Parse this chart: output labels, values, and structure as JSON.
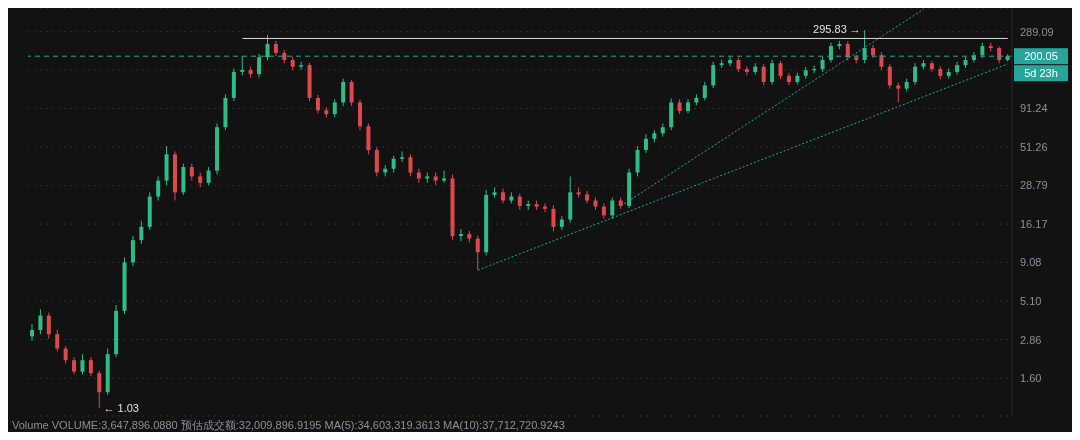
{
  "chart_data": {
    "type": "candlestick",
    "categories": [
      null,
      null,
      null,
      null,
      null,
      null,
      null,
      null,
      null,
      null,
      null,
      null,
      null,
      null,
      null,
      null,
      null,
      null,
      null,
      null,
      null,
      null,
      null,
      null,
      null,
      null,
      null,
      null,
      null,
      null,
      null,
      null,
      null,
      null,
      null,
      null,
      null,
      null,
      null,
      null,
      null,
      null,
      null,
      null,
      null,
      null,
      null,
      null,
      null,
      null,
      null,
      null,
      null,
      null,
      null,
      null,
      null,
      null,
      null,
      null,
      null,
      null,
      null,
      null,
      null,
      null,
      null,
      null,
      null,
      null,
      null,
      null,
      null,
      null,
      null,
      null,
      null,
      null,
      null,
      null,
      null,
      null,
      null,
      null,
      null,
      null,
      null,
      null,
      null,
      null,
      null,
      null,
      null,
      null,
      null,
      null,
      null,
      null,
      null,
      null,
      null,
      null,
      null,
      null,
      null,
      null,
      null,
      null,
      null,
      null,
      null,
      null,
      null,
      null,
      null,
      null,
      null
    ],
    "ohlc": [
      [
        3.0,
        3.6,
        2.8,
        3.3
      ],
      [
        3.3,
        4.5,
        3.1,
        4.1
      ],
      [
        4.1,
        4.3,
        2.9,
        3.1
      ],
      [
        3.1,
        3.3,
        2.4,
        2.5
      ],
      [
        2.5,
        2.6,
        2.0,
        2.1
      ],
      [
        2.1,
        2.2,
        1.7,
        1.77
      ],
      [
        1.77,
        2.3,
        1.7,
        2.1
      ],
      [
        2.1,
        2.2,
        1.65,
        1.73
      ],
      [
        1.73,
        1.8,
        1.03,
        1.3
      ],
      [
        1.3,
        2.5,
        1.25,
        2.3
      ],
      [
        2.3,
        4.8,
        2.2,
        4.4
      ],
      [
        4.4,
        9.8,
        4.2,
        9.1
      ],
      [
        9.1,
        13.5,
        8.6,
        12.7
      ],
      [
        12.7,
        17,
        12,
        15.5
      ],
      [
        15.5,
        26,
        14.8,
        24.4
      ],
      [
        24.4,
        33,
        23,
        31
      ],
      [
        31,
        52,
        29,
        46
      ],
      [
        46,
        48,
        23,
        26
      ],
      [
        26,
        40,
        25,
        38
      ],
      [
        38,
        40,
        31,
        33
      ],
      [
        33,
        35,
        28,
        30
      ],
      [
        30,
        38,
        29,
        36
      ],
      [
        36,
        73,
        34,
        69
      ],
      [
        69,
        113,
        66,
        107
      ],
      [
        107,
        166,
        102,
        158
      ],
      [
        158,
        200,
        150,
        163
      ],
      [
        163,
        171,
        145,
        153
      ],
      [
        153,
        207,
        146,
        197
      ],
      [
        197,
        275,
        188,
        240
      ],
      [
        240,
        252,
        200,
        210
      ],
      [
        210,
        220,
        180,
        189
      ],
      [
        189,
        198,
        162,
        171
      ],
      [
        171,
        184,
        163,
        175
      ],
      [
        175,
        181,
        102,
        107
      ],
      [
        107,
        112,
        85,
        89
      ],
      [
        89,
        93,
        80,
        84
      ],
      [
        84,
        105,
        80,
        100
      ],
      [
        100,
        143,
        95,
        136
      ],
      [
        136,
        140,
        95,
        100
      ],
      [
        100,
        104,
        66,
        70
      ],
      [
        70,
        73,
        46,
        49
      ],
      [
        49,
        51,
        33,
        35
      ],
      [
        35,
        39,
        33,
        37
      ],
      [
        37,
        45,
        35,
        43
      ],
      [
        43,
        48,
        41,
        44
      ],
      [
        44,
        46,
        33,
        35
      ],
      [
        35,
        37,
        30,
        32
      ],
      [
        32,
        35,
        30,
        33
      ],
      [
        33,
        35,
        29,
        31
      ],
      [
        31,
        36,
        30,
        32
      ],
      [
        32,
        34,
        12.8,
        13.5
      ],
      [
        13.5,
        15,
        12.5,
        13.9
      ],
      [
        13.9,
        14.6,
        12.3,
        13.0
      ],
      [
        13.0,
        13.6,
        8.1,
        10.6
      ],
      [
        10.6,
        27,
        10.1,
        25
      ],
      [
        25,
        28,
        24,
        26
      ],
      [
        26,
        27.5,
        22,
        23
      ],
      [
        23,
        26,
        22,
        24.4
      ],
      [
        24.4,
        25.5,
        20,
        21.2
      ],
      [
        21.2,
        23,
        20,
        21.8
      ],
      [
        21.8,
        23,
        20,
        21
      ],
      [
        21,
        22,
        19.3,
        20.3
      ],
      [
        20.3,
        21.5,
        14.5,
        15.5
      ],
      [
        15.5,
        18.2,
        14.8,
        17.3
      ],
      [
        17.3,
        33,
        16.5,
        26
      ],
      [
        26,
        28,
        24,
        25.2
      ],
      [
        25.2,
        26.5,
        22,
        23
      ],
      [
        23,
        24,
        20,
        21
      ],
      [
        21,
        22,
        17.5,
        18.4
      ],
      [
        18.4,
        24,
        17.5,
        23
      ],
      [
        23,
        24,
        20.3,
        21.2
      ],
      [
        21.2,
        37,
        20.5,
        35
      ],
      [
        35,
        52,
        33,
        49
      ],
      [
        49,
        62,
        47,
        58
      ],
      [
        58,
        66,
        55,
        63
      ],
      [
        63,
        73,
        60,
        69
      ],
      [
        69,
        106,
        66,
        100
      ],
      [
        100,
        105,
        84,
        88
      ],
      [
        88,
        105,
        85,
        100
      ],
      [
        100,
        113,
        96,
        107
      ],
      [
        107,
        136,
        103,
        129
      ],
      [
        129,
        184,
        124,
        175
      ],
      [
        175,
        190,
        168,
        180
      ],
      [
        180,
        198,
        172,
        189
      ],
      [
        189,
        196,
        158,
        165
      ],
      [
        165,
        172,
        150,
        158
      ],
      [
        158,
        180,
        152,
        171
      ],
      [
        171,
        178,
        130,
        136
      ],
      [
        136,
        190,
        131,
        180
      ],
      [
        180,
        186,
        142,
        149
      ],
      [
        149,
        156,
        130,
        136
      ],
      [
        136,
        156,
        131,
        149
      ],
      [
        149,
        170,
        143,
        162
      ],
      [
        162,
        174,
        155,
        165
      ],
      [
        165,
        198,
        158,
        189
      ],
      [
        189,
        245,
        182,
        233
      ],
      [
        233,
        252,
        222,
        240
      ],
      [
        240,
        250,
        188,
        197
      ],
      [
        197,
        205,
        180,
        189
      ],
      [
        189,
        295.83,
        180,
        226
      ],
      [
        226,
        237,
        195,
        203
      ],
      [
        203,
        212,
        163,
        171
      ],
      [
        171,
        178,
        123,
        129
      ],
      [
        129,
        135,
        100,
        123
      ],
      [
        123,
        143,
        118,
        136
      ],
      [
        136,
        180,
        130,
        171
      ],
      [
        171,
        189,
        165,
        180
      ],
      [
        180,
        186,
        158,
        165
      ],
      [
        165,
        172,
        142,
        149
      ],
      [
        149,
        166,
        143,
        158
      ],
      [
        158,
        184,
        152,
        175
      ],
      [
        175,
        198,
        168,
        189
      ],
      [
        189,
        213,
        182,
        203
      ],
      [
        203,
        245,
        195,
        233
      ],
      [
        233,
        245,
        215,
        226
      ],
      [
        226,
        232,
        180,
        189
      ],
      [
        189,
        206,
        185,
        200.05
      ]
    ],
    "colors": [
      "#2ebd85",
      "#2ebd85",
      "#e0474c",
      "#e0474c",
      "#e0474c",
      "#e0474c",
      "#2ebd85",
      "#e0474c",
      "#e0474c",
      "#2ebd85",
      "#2ebd85",
      "#2ebd85",
      "#2ebd85",
      "#2ebd85",
      "#2ebd85",
      "#2ebd85",
      "#2ebd85",
      "#e0474c",
      "#2ebd85",
      "#e0474c",
      "#e0474c",
      "#2ebd85",
      "#2ebd85",
      "#2ebd85",
      "#2ebd85",
      "#2ebd85",
      "#e0474c",
      "#2ebd85",
      "#2ebd85",
      "#e0474c",
      "#e0474c",
      "#e0474c",
      "#2ebd85",
      "#e0474c",
      "#e0474c",
      "#e0474c",
      "#2ebd85",
      "#2ebd85",
      "#e0474c",
      "#e0474c",
      "#e0474c",
      "#e0474c",
      "#2ebd85",
      "#2ebd85",
      "#2ebd85",
      "#e0474c",
      "#e0474c",
      "#2ebd85",
      "#e0474c",
      "#2ebd85",
      "#e0474c",
      "#2ebd85",
      "#e0474c",
      "#e0474c",
      "#2ebd85",
      "#2ebd85",
      "#e0474c",
      "#2ebd85",
      "#e0474c",
      "#2ebd85",
      "#e0474c",
      "#e0474c",
      "#e0474c",
      "#2ebd85",
      "#2ebd85",
      "#e0474c",
      "#e0474c",
      "#e0474c",
      "#e0474c",
      "#2ebd85",
      "#e0474c",
      "#2ebd85",
      "#2ebd85",
      "#2ebd85",
      "#2ebd85",
      "#2ebd85",
      "#2ebd85",
      "#e0474c",
      "#2ebd85",
      "#2ebd85",
      "#2ebd85",
      "#2ebd85",
      "#2ebd85",
      "#2ebd85",
      "#e0474c",
      "#e0474c",
      "#2ebd85",
      "#e0474c",
      "#2ebd85",
      "#e0474c",
      "#e0474c",
      "#2ebd85",
      "#2ebd85",
      "#2ebd85",
      "#2ebd85",
      "#2ebd85",
      "#2ebd85",
      "#e0474c",
      "#e0474c",
      "#2ebd85",
      "#e0474c",
      "#e0474c",
      "#e0474c",
      "#e0474c",
      "#2ebd85",
      "#2ebd85",
      "#2ebd85",
      "#e0474c",
      "#e0474c",
      "#2ebd85",
      "#2ebd85",
      "#2ebd85",
      "#2ebd85",
      "#2ebd85",
      "#e0474c",
      "#e0474c",
      "#2ebd85"
    ],
    "series": [
      {
        "type": "line",
        "color": "#d9d9d9",
        "line_style": "solid",
        "values": [
          null,
          null,
          null,
          null,
          null,
          null,
          null,
          null,
          null,
          null,
          null,
          null,
          null,
          null,
          null,
          null,
          null,
          null,
          null,
          null,
          null,
          null,
          null,
          null,
          null,
          261,
          null,
          null,
          null,
          null,
          null,
          null,
          null,
          null,
          null,
          null,
          null,
          null,
          null,
          null,
          null,
          null,
          null,
          null,
          null,
          null,
          null,
          null,
          null,
          null,
          null,
          null,
          null,
          null,
          null,
          null,
          null,
          null,
          null,
          null,
          null,
          null,
          null,
          null,
          null,
          null,
          null,
          null,
          null,
          null,
          null,
          null,
          null,
          null,
          null,
          null,
          null,
          null,
          null,
          null,
          null,
          null,
          null,
          null,
          null,
          null,
          null,
          null,
          null,
          null,
          null,
          null,
          null,
          null,
          null,
          null,
          null,
          null,
          null,
          null,
          null,
          null,
          null,
          null,
          null,
          null,
          null,
          null,
          null,
          null,
          null,
          null,
          null,
          null,
          null,
          null,
          261
        ]
      },
      {
        "type": "line",
        "color": "#26a69a",
        "line_style": "dotted",
        "values": [
          null,
          null,
          null,
          null,
          null,
          null,
          null,
          null,
          null,
          null,
          null,
          null,
          null,
          null,
          null,
          null,
          null,
          null,
          null,
          null,
          null,
          null,
          null,
          null,
          null,
          null,
          null,
          null,
          null,
          null,
          null,
          null,
          null,
          null,
          null,
          null,
          null,
          null,
          null,
          null,
          null,
          null,
          null,
          null,
          null,
          null,
          null,
          null,
          null,
          null,
          null,
          null,
          null,
          8.1,
          null,
          null,
          null,
          null,
          null,
          null,
          null,
          null,
          null,
          null,
          null,
          null,
          null,
          null,
          null,
          null,
          null,
          null,
          null,
          null,
          null,
          null,
          null,
          null,
          null,
          null,
          null,
          null,
          null,
          null,
          null,
          null,
          null,
          null,
          null,
          null,
          null,
          null,
          null,
          null,
          null,
          null,
          null,
          null,
          null,
          null,
          null,
          null,
          null,
          null,
          null,
          null,
          null,
          null,
          null,
          null,
          null,
          null,
          null,
          null,
          null,
          null,
          178
        ]
      },
      {
        "type": "line",
        "color": "#26a69a",
        "line_style": "dotted",
        "values": [
          null,
          null,
          null,
          null,
          null,
          null,
          null,
          null,
          null,
          null,
          null,
          null,
          null,
          null,
          null,
          null,
          null,
          null,
          null,
          null,
          null,
          null,
          null,
          null,
          null,
          null,
          null,
          null,
          null,
          null,
          null,
          null,
          null,
          null,
          null,
          null,
          null,
          null,
          null,
          null,
          null,
          null,
          null,
          null,
          null,
          null,
          null,
          null,
          null,
          null,
          null,
          null,
          null,
          null,
          null,
          null,
          null,
          null,
          null,
          null,
          null,
          null,
          null,
          null,
          null,
          null,
          null,
          null,
          null,
          null,
          21.2,
          null,
          null,
          null,
          null,
          null,
          null,
          null,
          null,
          null,
          null,
          null,
          null,
          null,
          null,
          null,
          null,
          null,
          null,
          null,
          null,
          null,
          null,
          null,
          null,
          null,
          null,
          null,
          null,
          null,
          null,
          null,
          null,
          null,
          null,
          null,
          405,
          null,
          null,
          null,
          null,
          null,
          null,
          null,
          null,
          null,
          null
        ]
      }
    ],
    "log": true,
    "ylim": [
      0.91,
      412
    ],
    "yticks": [
      {
        "value": 1.6,
        "label": "1.60"
      },
      2.86,
      {
        "value": 5.1,
        "label": "5.10"
      },
      9.08,
      16.17,
      28.79,
      51.26,
      91.24,
      {
        "value": 162.4,
        "label": null
      },
      289.09
    ],
    "grid": "y",
    "tick_labels": "y",
    "ref_lines": [
      {
        "axis": "y",
        "value": 200.05,
        "label": "200.05",
        "color": "#26a69a",
        "line_style": "dashed"
      }
    ],
    "annotations": [
      "295.83 →",
      "← 1.03",
      "5d 23h",
      "Volume VOLUME:3,647,896.0880 预估成交额:32,009,896.9195 MA(5):34,603,319.3613 MA(10):37,712,720.9243"
    ]
  }
}
